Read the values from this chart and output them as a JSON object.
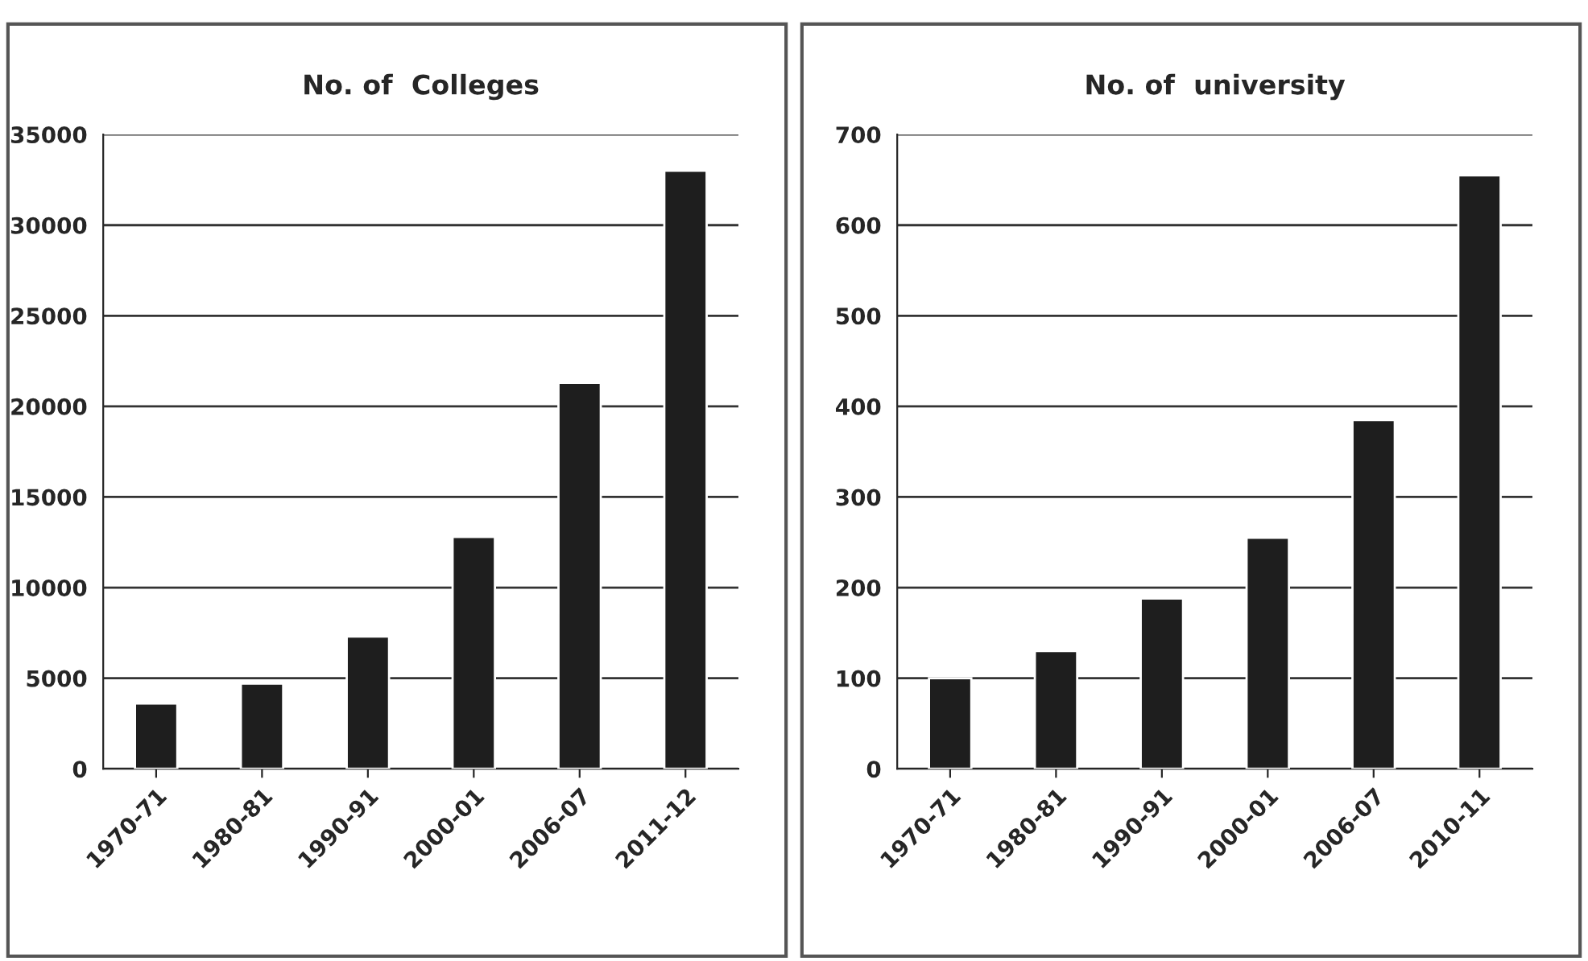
{
  "chart_data": [
    {
      "type": "bar",
      "title": "No. of  Colleges",
      "categories": [
        "1970-71",
        "1980-81",
        "1990-91",
        "2000-01",
        "2006-07",
        "2011-12"
      ],
      "values": [
        3600,
        4700,
        7300,
        12800,
        21300,
        33000
      ],
      "color": "#1e1e1e",
      "ylim": [
        0,
        35000
      ],
      "yticks": [
        0,
        5000,
        10000,
        15000,
        20000,
        25000,
        30000,
        35000
      ],
      "grid": "y"
    },
    {
      "type": "bar",
      "title": "No. of  university",
      "categories": [
        "1970-71",
        "1980-81",
        "1990-91",
        "2000-01",
        "2006-07",
        "2010-11"
      ],
      "values": [
        100,
        130,
        188,
        255,
        385,
        655
      ],
      "color": "#1e1e1e",
      "ylim": [
        0,
        700
      ],
      "yticks": [
        0,
        100,
        200,
        300,
        400,
        500,
        600,
        700
      ],
      "grid": "y"
    }
  ]
}
